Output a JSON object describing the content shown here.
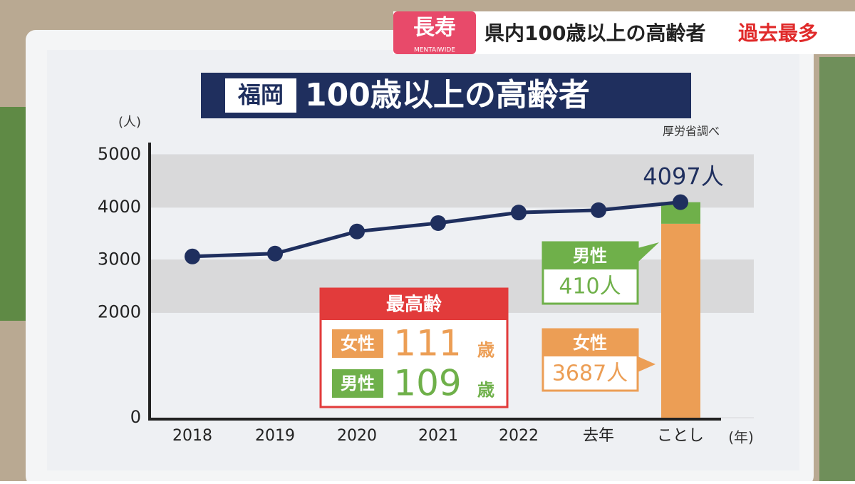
{
  "banner": {
    "tag": "長寿",
    "brand": "MENTAIWIDE",
    "headline": "県内100歳以上の高齢者",
    "highlight": "過去最多"
  },
  "chart_data": {
    "type": "line",
    "title_tag": "福岡",
    "title": "100歳以上の高齢者",
    "source": "厚労省調べ",
    "y_unit": "(人)",
    "x_unit": "(年)",
    "categories": [
      "2018",
      "2019",
      "2020",
      "2021",
      "2022",
      "去年",
      "ことし"
    ],
    "values": [
      3065,
      3120,
      3540,
      3700,
      3900,
      3945,
      4097
    ],
    "value_labels": [
      null,
      null,
      null,
      null,
      null,
      null,
      "4097人"
    ],
    "color": "#1f2f5e",
    "ylim": [
      0,
      5000
    ],
    "yticks": [
      0,
      2000,
      3000,
      4000,
      5000
    ],
    "grid": true,
    "bars": {
      "type": "bar",
      "stacked": true,
      "series": [
        {
          "name": "女性",
          "color": "#ec9e55",
          "values": [
            null,
            null,
            null,
            null,
            null,
            null,
            3687
          ],
          "value_labels": [
            null,
            null,
            null,
            null,
            null,
            null,
            "3687人"
          ]
        },
        {
          "name": "男性",
          "color": "#6fb04a",
          "values": [
            null,
            null,
            null,
            null,
            null,
            null,
            410
          ],
          "value_labels": [
            null,
            null,
            null,
            null,
            null,
            null,
            "410人"
          ]
        }
      ]
    }
  },
  "oldest": {
    "title": "最高齢",
    "rows": [
      {
        "sex": "女性",
        "age": "111",
        "unit": "歳"
      },
      {
        "sex": "男性",
        "age": "109",
        "unit": "歳"
      }
    ]
  }
}
